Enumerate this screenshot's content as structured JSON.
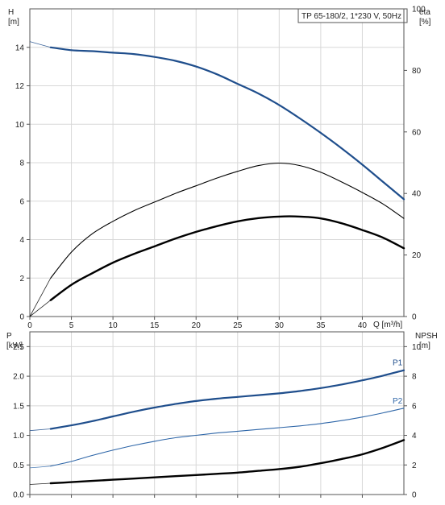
{
  "chart_data": [
    {
      "type": "line",
      "title": "TP 65-180/2, 1*230 V, 50Hz",
      "xlabel": "Q [m³/h]",
      "ylabel_left": [
        "H",
        "[m]"
      ],
      "ylabel_right": [
        "eta",
        "[%]"
      ],
      "xlim": [
        0,
        45
      ],
      "ylim_left": [
        0,
        16
      ],
      "ylim_right": [
        0,
        100
      ],
      "x_ticks": [
        "0",
        "5",
        "10",
        "15",
        "20",
        "25",
        "30",
        "35",
        "40"
      ],
      "x_tick_values": [
        0,
        5,
        10,
        15,
        20,
        25,
        30,
        35,
        40
      ],
      "y_left_ticks": [
        "0",
        "2",
        "4",
        "6",
        "8",
        "10",
        "12",
        "14"
      ],
      "y_left_tick_values": [
        0,
        2,
        4,
        6,
        8,
        10,
        12,
        14
      ],
      "y_right_ticks": [
        "0",
        "20",
        "40",
        "60",
        "80",
        "100"
      ],
      "y_right_tick_values": [
        0,
        20,
        40,
        60,
        80,
        100
      ],
      "grid": true,
      "series": [
        {
          "axis": "left",
          "color": "#1f4e8c",
          "width": 2.2,
          "dash": [
            {
              "x": 0,
              "y": 14.3
            },
            {
              "x": 2.5,
              "y": 14.0
            }
          ],
          "x": [
            2.5,
            5,
            7.5,
            10,
            12.5,
            15,
            17.5,
            20,
            22.5,
            25,
            27.5,
            30,
            32.5,
            35,
            37.5,
            40,
            42.5,
            45
          ],
          "y": [
            14.0,
            13.85,
            13.8,
            13.72,
            13.65,
            13.5,
            13.3,
            13.0,
            12.6,
            12.1,
            11.6,
            11.0,
            10.3,
            9.55,
            8.75,
            7.9,
            7.0,
            6.1
          ]
        },
        {
          "axis": "left",
          "color": "#000000",
          "width": 1.1,
          "dash": [
            {
              "x": 0,
              "y": 0
            },
            {
              "x": 2.5,
              "y": 2.0
            }
          ],
          "x": [
            2.5,
            5,
            7.5,
            10,
            12.5,
            15,
            17.5,
            20,
            22.5,
            25,
            27.5,
            30,
            32.5,
            35,
            37.5,
            40,
            42.5,
            45
          ],
          "y": [
            2.0,
            3.35,
            4.3,
            4.95,
            5.5,
            5.95,
            6.4,
            6.8,
            7.2,
            7.55,
            7.85,
            7.98,
            7.85,
            7.5,
            7.0,
            6.45,
            5.85,
            5.1
          ]
        },
        {
          "axis": "left",
          "color": "#000000",
          "width": 2.4,
          "dash": [
            {
              "x": 0,
              "y": 0
            },
            {
              "x": 2.5,
              "y": 0.85
            }
          ],
          "x": [
            2.5,
            5,
            7.5,
            10,
            12.5,
            15,
            17.5,
            20,
            22.5,
            25,
            27.5,
            30,
            32.5,
            35,
            37.5,
            40,
            42.5,
            45
          ],
          "y": [
            0.85,
            1.65,
            2.25,
            2.8,
            3.25,
            3.65,
            4.05,
            4.4,
            4.7,
            4.95,
            5.12,
            5.2,
            5.2,
            5.1,
            4.85,
            4.5,
            4.1,
            3.55
          ]
        }
      ]
    },
    {
      "type": "line",
      "title": "",
      "xlabel": "",
      "ylabel_left": [
        "P",
        "[kW]"
      ],
      "ylabel_right": [
        "NPSH",
        "[m]"
      ],
      "xlim": [
        0,
        45
      ],
      "ylim_left": [
        0,
        2.75
      ],
      "ylim_right": [
        0,
        11
      ],
      "x_tick_values": [
        0,
        5,
        10,
        15,
        20,
        25,
        30,
        35,
        40
      ],
      "y_left_ticks": [
        "0.0",
        "0.5",
        "1.0",
        "1.5",
        "2.0",
        "2.5"
      ],
      "y_left_tick_values": [
        0,
        0.5,
        1.0,
        1.5,
        2.0,
        2.5
      ],
      "y_right_ticks": [
        "0",
        "2",
        "4",
        "6",
        "8",
        "10"
      ],
      "y_right_tick_values": [
        0,
        2,
        4,
        6,
        8,
        10
      ],
      "grid": true,
      "series": [
        {
          "name": "P1",
          "axis": "left",
          "color": "#1f4e8c",
          "width": 2.2,
          "dash": [
            {
              "x": 0,
              "y": 1.08
            },
            {
              "x": 2.5,
              "y": 1.11
            }
          ],
          "x": [
            2.5,
            5,
            7.5,
            10,
            12.5,
            15,
            17.5,
            20,
            22.5,
            25,
            27.5,
            30,
            32.5,
            35,
            37.5,
            40,
            42.5,
            45
          ],
          "y": [
            1.11,
            1.17,
            1.24,
            1.32,
            1.4,
            1.47,
            1.53,
            1.58,
            1.62,
            1.65,
            1.68,
            1.71,
            1.75,
            1.8,
            1.86,
            1.93,
            2.01,
            2.1
          ]
        },
        {
          "name": "P2",
          "axis": "left",
          "color": "#2e66a8",
          "width": 1.1,
          "dash": [
            {
              "x": 0,
              "y": 0.45
            },
            {
              "x": 2.5,
              "y": 0.48
            }
          ],
          "x": [
            2.5,
            5,
            7.5,
            10,
            12.5,
            15,
            17.5,
            20,
            22.5,
            25,
            27.5,
            30,
            32.5,
            35,
            37.5,
            40,
            42.5,
            45
          ],
          "y": [
            0.48,
            0.56,
            0.66,
            0.75,
            0.83,
            0.9,
            0.96,
            1.0,
            1.04,
            1.07,
            1.1,
            1.13,
            1.16,
            1.2,
            1.25,
            1.31,
            1.38,
            1.46
          ]
        },
        {
          "axis": "left",
          "color": "#000000",
          "width": 2.4,
          "dash": [
            {
              "x": 0,
              "y": 0.17
            },
            {
              "x": 2.5,
              "y": 0.19
            }
          ],
          "x": [
            2.5,
            5,
            7.5,
            10,
            12.5,
            15,
            17.5,
            20,
            22.5,
            25,
            27.5,
            30,
            32.5,
            35,
            37.5,
            40,
            42.5,
            45
          ],
          "y": [
            0.19,
            0.21,
            0.23,
            0.25,
            0.27,
            0.29,
            0.31,
            0.33,
            0.35,
            0.37,
            0.4,
            0.43,
            0.47,
            0.53,
            0.6,
            0.68,
            0.79,
            0.92
          ]
        }
      ]
    }
  ]
}
